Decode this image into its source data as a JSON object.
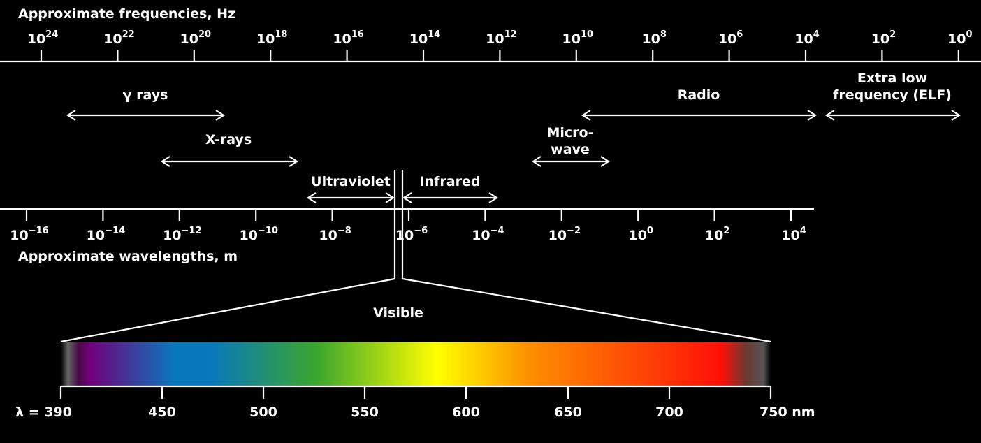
{
  "frequency_axis": {
    "title": "Approximate frequencies, Hz",
    "ticks": [
      {
        "base": "10",
        "exp": "24"
      },
      {
        "base": "10",
        "exp": "22"
      },
      {
        "base": "10",
        "exp": "20"
      },
      {
        "base": "10",
        "exp": "18"
      },
      {
        "base": "10",
        "exp": "16"
      },
      {
        "base": "10",
        "exp": "14"
      },
      {
        "base": "10",
        "exp": "12"
      },
      {
        "base": "10",
        "exp": "10"
      },
      {
        "base": "10",
        "exp": "8"
      },
      {
        "base": "10",
        "exp": "6"
      },
      {
        "base": "10",
        "exp": "4"
      },
      {
        "base": "10",
        "exp": "2"
      },
      {
        "base": "10",
        "exp": "0"
      }
    ]
  },
  "wavelength_axis": {
    "title": "Approximate wavelengths, m",
    "ticks": [
      {
        "base": "10",
        "exp": "−16"
      },
      {
        "base": "10",
        "exp": "−14"
      },
      {
        "base": "10",
        "exp": "−12"
      },
      {
        "base": "10",
        "exp": "−10"
      },
      {
        "base": "10",
        "exp": "−8"
      },
      {
        "base": "10",
        "exp": "−6"
      },
      {
        "base": "10",
        "exp": "−4"
      },
      {
        "base": "10",
        "exp": "−2"
      },
      {
        "base": "10",
        "exp": "0"
      },
      {
        "base": "10",
        "exp": "2"
      },
      {
        "base": "10",
        "exp": "4"
      }
    ]
  },
  "bands": {
    "gamma": "γ rays",
    "xrays": "X-rays",
    "ultraviolet": "Ultraviolet",
    "infrared": "Infrared",
    "microwave_1": "Micro-",
    "microwave_2": "wave",
    "radio": "Radio",
    "elf_1": "Extra low",
    "elf_2": "frequency (ELF)"
  },
  "visible": {
    "title": "Visible",
    "scale_labels": [
      "λ = 390",
      "450",
      "500",
      "550",
      "600",
      "650",
      "700",
      "750 nm"
    ],
    "colors": {
      "violet": "#70007a",
      "blue": "#0878bd",
      "green": "#3aa62c",
      "yellow": "#ffff00",
      "orange": "#fd8f00",
      "red": "#ff1008"
    }
  }
}
